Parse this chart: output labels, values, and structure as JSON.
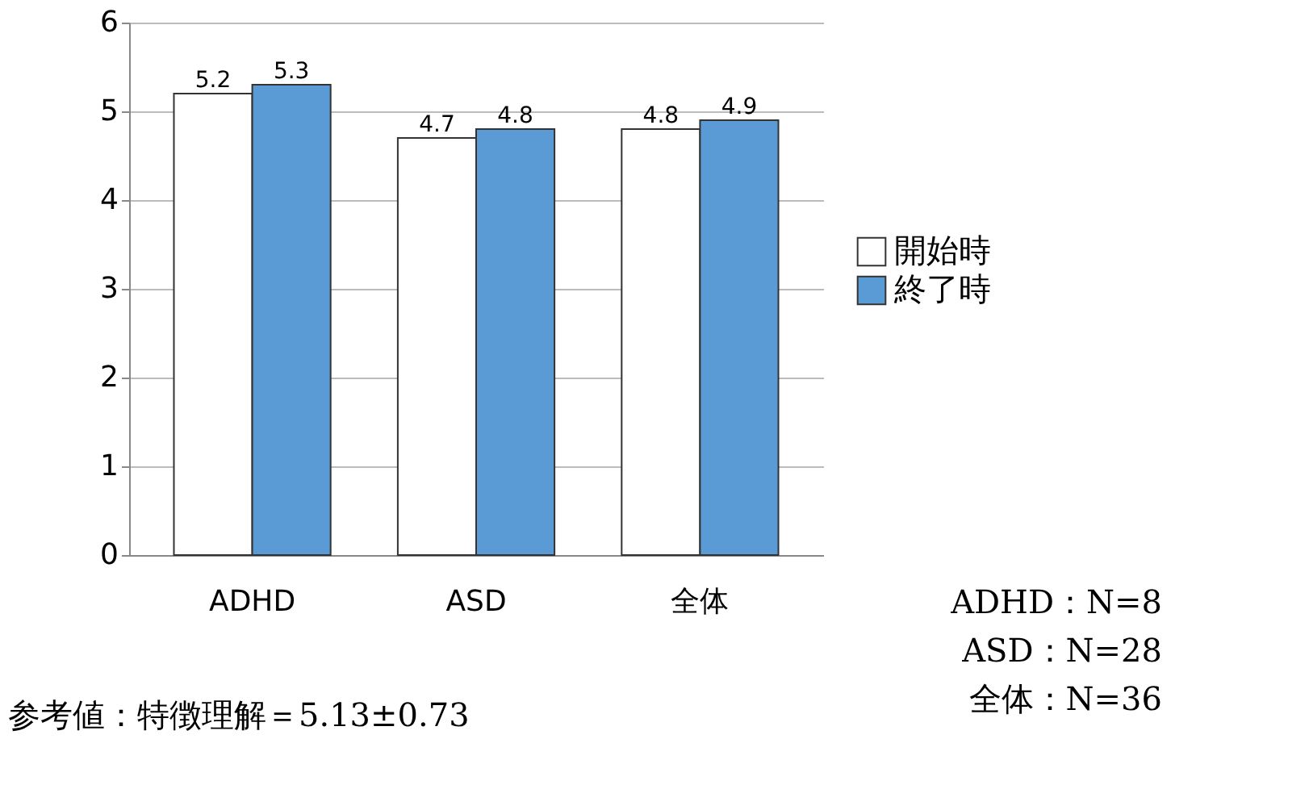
{
  "chart_data": {
    "type": "bar",
    "categories": [
      "ADHD",
      "ASD",
      "全体"
    ],
    "series": [
      {
        "name": "開始時",
        "color": "#ffffff",
        "values": [
          5.2,
          4.7,
          4.8
        ]
      },
      {
        "name": "終了時",
        "color": "#5b9bd5",
        "values": [
          5.3,
          4.8,
          4.9
        ]
      }
    ],
    "ylim": [
      0,
      6
    ],
    "yticks": [
      0,
      1,
      2,
      3,
      4,
      5,
      6
    ],
    "grid": "y",
    "legend": "right",
    "data_labels": true,
    "annotations": [
      "ADHD：N=8",
      "ASD：N=28",
      "全体：N=36",
      "参考値：特徴理解＝5.13±0.73"
    ]
  }
}
